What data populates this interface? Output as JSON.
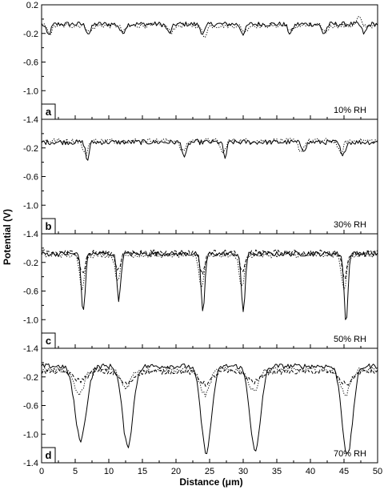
{
  "chart_data": {
    "type": "line",
    "xlabel": "Distance (μm)",
    "ylabel": "Potential (V)",
    "xlim": [
      0,
      50
    ],
    "ylim": [
      -1.4,
      0.2
    ],
    "x_ticks": [
      "0",
      "5",
      "10",
      "15",
      "20",
      "25",
      "30",
      "35",
      "40",
      "45",
      "50"
    ],
    "y_ticks": [
      {
        "value": 0.2,
        "label": "0.2"
      },
      {
        "value": -0.2,
        "label": "-0.2"
      },
      {
        "value": -0.6,
        "label": "-0.6"
      },
      {
        "value": -1.0,
        "label": "-1.0"
      },
      {
        "value": -1.4,
        "label": "-1.4"
      }
    ],
    "panels": [
      {
        "letter": "a",
        "condition": "10% RH",
        "series": [
          {
            "style": "solid",
            "baseline": -0.07,
            "dips": [
              [
                1.0,
                -0.22,
                0.5
              ],
              [
                7.0,
                -0.2,
                0.5
              ],
              [
                12.0,
                -0.2,
                0.5
              ],
              [
                19.0,
                -0.2,
                0.5
              ],
              [
                24.0,
                -0.2,
                0.5
              ],
              [
                30.0,
                -0.2,
                0.5
              ],
              [
                37.0,
                -0.2,
                0.5
              ],
              [
                42.0,
                -0.2,
                0.5
              ],
              [
                48.0,
                -0.2,
                0.5
              ]
            ]
          },
          {
            "style": "dotted",
            "baseline": -0.09,
            "dips": [
              [
                1.2,
                -0.2,
                0.5
              ],
              [
                7.2,
                -0.18,
                0.5
              ],
              [
                12.2,
                -0.18,
                0.5
              ],
              [
                19.2,
                -0.18,
                0.5
              ],
              [
                24.2,
                -0.24,
                0.5
              ],
              [
                30.2,
                -0.18,
                0.5
              ],
              [
                37.2,
                -0.18,
                0.5
              ],
              [
                42.2,
                -0.18,
                0.5
              ],
              [
                47.2,
                0.03,
                0.4
              ]
            ]
          }
        ]
      },
      {
        "letter": "b",
        "condition": "30% RH",
        "series": [
          {
            "style": "solid",
            "baseline": -0.12,
            "dips": [
              [
                6.8,
                -0.38,
                0.35
              ],
              [
                21.3,
                -0.33,
                0.45
              ],
              [
                27.3,
                -0.34,
                0.35
              ],
              [
                39.0,
                -0.22,
                0.5
              ],
              [
                44.8,
                -0.33,
                0.45
              ]
            ]
          },
          {
            "style": "dotted",
            "baseline": -0.1,
            "dips": [
              [
                6.5,
                -0.3,
                0.5
              ],
              [
                21.0,
                -0.25,
                0.6
              ],
              [
                27.0,
                -0.28,
                0.5
              ],
              [
                38.6,
                -0.24,
                0.6
              ],
              [
                44.5,
                -0.3,
                0.5
              ]
            ]
          }
        ]
      },
      {
        "letter": "c",
        "condition": "50% RH",
        "series": [
          {
            "style": "solid",
            "baseline": -0.08,
            "dips": [
              [
                6.2,
                -0.9,
                0.4
              ],
              [
                11.5,
                -0.72,
                0.4
              ],
              [
                24.0,
                -0.88,
                0.4
              ],
              [
                30.0,
                -0.88,
                0.4
              ],
              [
                45.3,
                -1.02,
                0.4
              ]
            ]
          },
          {
            "style": "dotted",
            "baseline": -0.1,
            "dips": [
              [
                6.0,
                -0.55,
                0.5
              ],
              [
                11.3,
                -0.45,
                0.5
              ],
              [
                23.8,
                -0.55,
                0.5
              ],
              [
                29.8,
                -0.55,
                0.5
              ],
              [
                45.0,
                -0.6,
                0.5
              ]
            ]
          },
          {
            "style": "dashed",
            "baseline": -0.06,
            "dips": [
              [
                6.1,
                -0.35,
                0.55
              ],
              [
                11.4,
                -0.3,
                0.55
              ],
              [
                23.9,
                -0.35,
                0.55
              ],
              [
                29.9,
                -0.35,
                0.55
              ],
              [
                45.1,
                -0.4,
                0.55
              ]
            ]
          }
        ]
      },
      {
        "letter": "d",
        "condition": "70% RH",
        "series": [
          {
            "style": "solid",
            "baseline": -0.05,
            "dips": [
              [
                5.8,
                -1.08,
                1.2
              ],
              [
                12.8,
                -1.17,
                1.1
              ],
              [
                24.5,
                -1.25,
                1.1
              ],
              [
                31.8,
                -1.25,
                1.1
              ],
              [
                45.5,
                -1.3,
                1.1
              ]
            ]
          },
          {
            "style": "dotted",
            "baseline": -0.1,
            "dips": [
              [
                5.6,
                -0.45,
                1.0
              ],
              [
                12.5,
                -0.35,
                1.0
              ],
              [
                24.3,
                -0.45,
                1.0
              ],
              [
                31.5,
                -0.4,
                1.0
              ],
              [
                45.2,
                -0.45,
                1.0
              ]
            ]
          },
          {
            "style": "dashed",
            "baseline": -0.13,
            "dips": [
              [
                5.7,
                -0.25,
                1.3
              ],
              [
                12.6,
                -0.3,
                1.3
              ],
              [
                24.4,
                -0.3,
                1.3
              ],
              [
                31.6,
                -0.27,
                1.3
              ],
              [
                45.3,
                -0.3,
                1.3
              ]
            ]
          }
        ]
      }
    ]
  }
}
